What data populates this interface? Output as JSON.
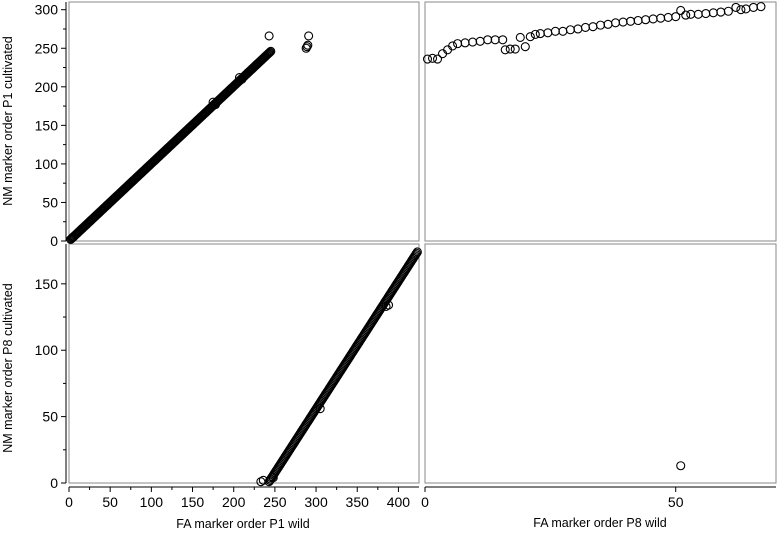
{
  "chart_data": {
    "type": "scatter",
    "layout": "2x2 scatterplot matrix",
    "x_axes": [
      {
        "label": "FA marker order P1 wild",
        "range": [
          0,
          425
        ],
        "ticks": [
          0,
          50,
          100,
          150,
          200,
          250,
          300,
          350,
          400
        ]
      },
      {
        "label": "FA marker order P8 wild",
        "range": [
          0,
          70
        ],
        "ticks": [
          0,
          50
        ]
      }
    ],
    "y_axes": [
      {
        "label": "NM marker order P1 cultivated",
        "range": [
          0,
          310
        ],
        "ticks": [
          0,
          50,
          100,
          150,
          200,
          250,
          300
        ]
      },
      {
        "label": "NM marker order P8 cultivated",
        "range": [
          0,
          180
        ],
        "ticks": [
          0,
          50,
          100,
          150
        ]
      }
    ],
    "marker": "open-circle",
    "grid": false,
    "panels": [
      {
        "row": 0,
        "col": 0,
        "segments": [
          {
            "x_start": 2,
            "y_start": 2,
            "x_end": 245,
            "y_end": 246,
            "step": 1
          }
        ],
        "points": [
          [
            243,
            266
          ],
          [
            288,
            250
          ],
          [
            289,
            252
          ],
          [
            290,
            254
          ],
          [
            291,
            266
          ],
          [
            207,
            212
          ],
          [
            210,
            210
          ],
          [
            175,
            180
          ],
          [
            178,
            177
          ],
          [
            5,
            5
          ]
        ]
      },
      {
        "row": 0,
        "col": 1,
        "segments": [],
        "points": [
          [
            0.5,
            236
          ],
          [
            1.5,
            237
          ],
          [
            2.5,
            236
          ],
          [
            3.5,
            243
          ],
          [
            4.5,
            248
          ],
          [
            5.5,
            253
          ],
          [
            6.5,
            256
          ],
          [
            8,
            257
          ],
          [
            9.5,
            258
          ],
          [
            11,
            259
          ],
          [
            12.5,
            261
          ],
          [
            14,
            261
          ],
          [
            15.5,
            261
          ],
          [
            16,
            248
          ],
          [
            17,
            249
          ],
          [
            18,
            249
          ],
          [
            19,
            264
          ],
          [
            20,
            252
          ],
          [
            21,
            265
          ],
          [
            22,
            268
          ],
          [
            23,
            269
          ],
          [
            24.5,
            270
          ],
          [
            26,
            272
          ],
          [
            27.5,
            272
          ],
          [
            29,
            274
          ],
          [
            30.5,
            275
          ],
          [
            32,
            277
          ],
          [
            33.5,
            278
          ],
          [
            35,
            280
          ],
          [
            36.5,
            281
          ],
          [
            38,
            283
          ],
          [
            39.5,
            284
          ],
          [
            41,
            285
          ],
          [
            42.5,
            286
          ],
          [
            44,
            287
          ],
          [
            45.5,
            288
          ],
          [
            47,
            289
          ],
          [
            48.5,
            290
          ],
          [
            50,
            291
          ],
          [
            51,
            299
          ],
          [
            52,
            293
          ],
          [
            53,
            294
          ],
          [
            54.5,
            294
          ],
          [
            56,
            295
          ],
          [
            57.5,
            296
          ],
          [
            59,
            297
          ],
          [
            60.5,
            298
          ],
          [
            62,
            303
          ],
          [
            63,
            300
          ],
          [
            64,
            301
          ],
          [
            65.5,
            303
          ],
          [
            67,
            304
          ]
        ]
      },
      {
        "row": 1,
        "col": 0,
        "segments": [
          {
            "x_start": 243,
            "y_start": 1,
            "x_end": 423,
            "y_end": 174,
            "step": 1
          }
        ],
        "points": [
          [
            233,
            1
          ],
          [
            236,
            2
          ],
          [
            385,
            133
          ],
          [
            305,
            56
          ],
          [
            388,
            134
          ],
          [
            248,
            4
          ]
        ]
      },
      {
        "row": 1,
        "col": 1,
        "segments": [],
        "points": [
          [
            51,
            13
          ]
        ]
      }
    ]
  }
}
